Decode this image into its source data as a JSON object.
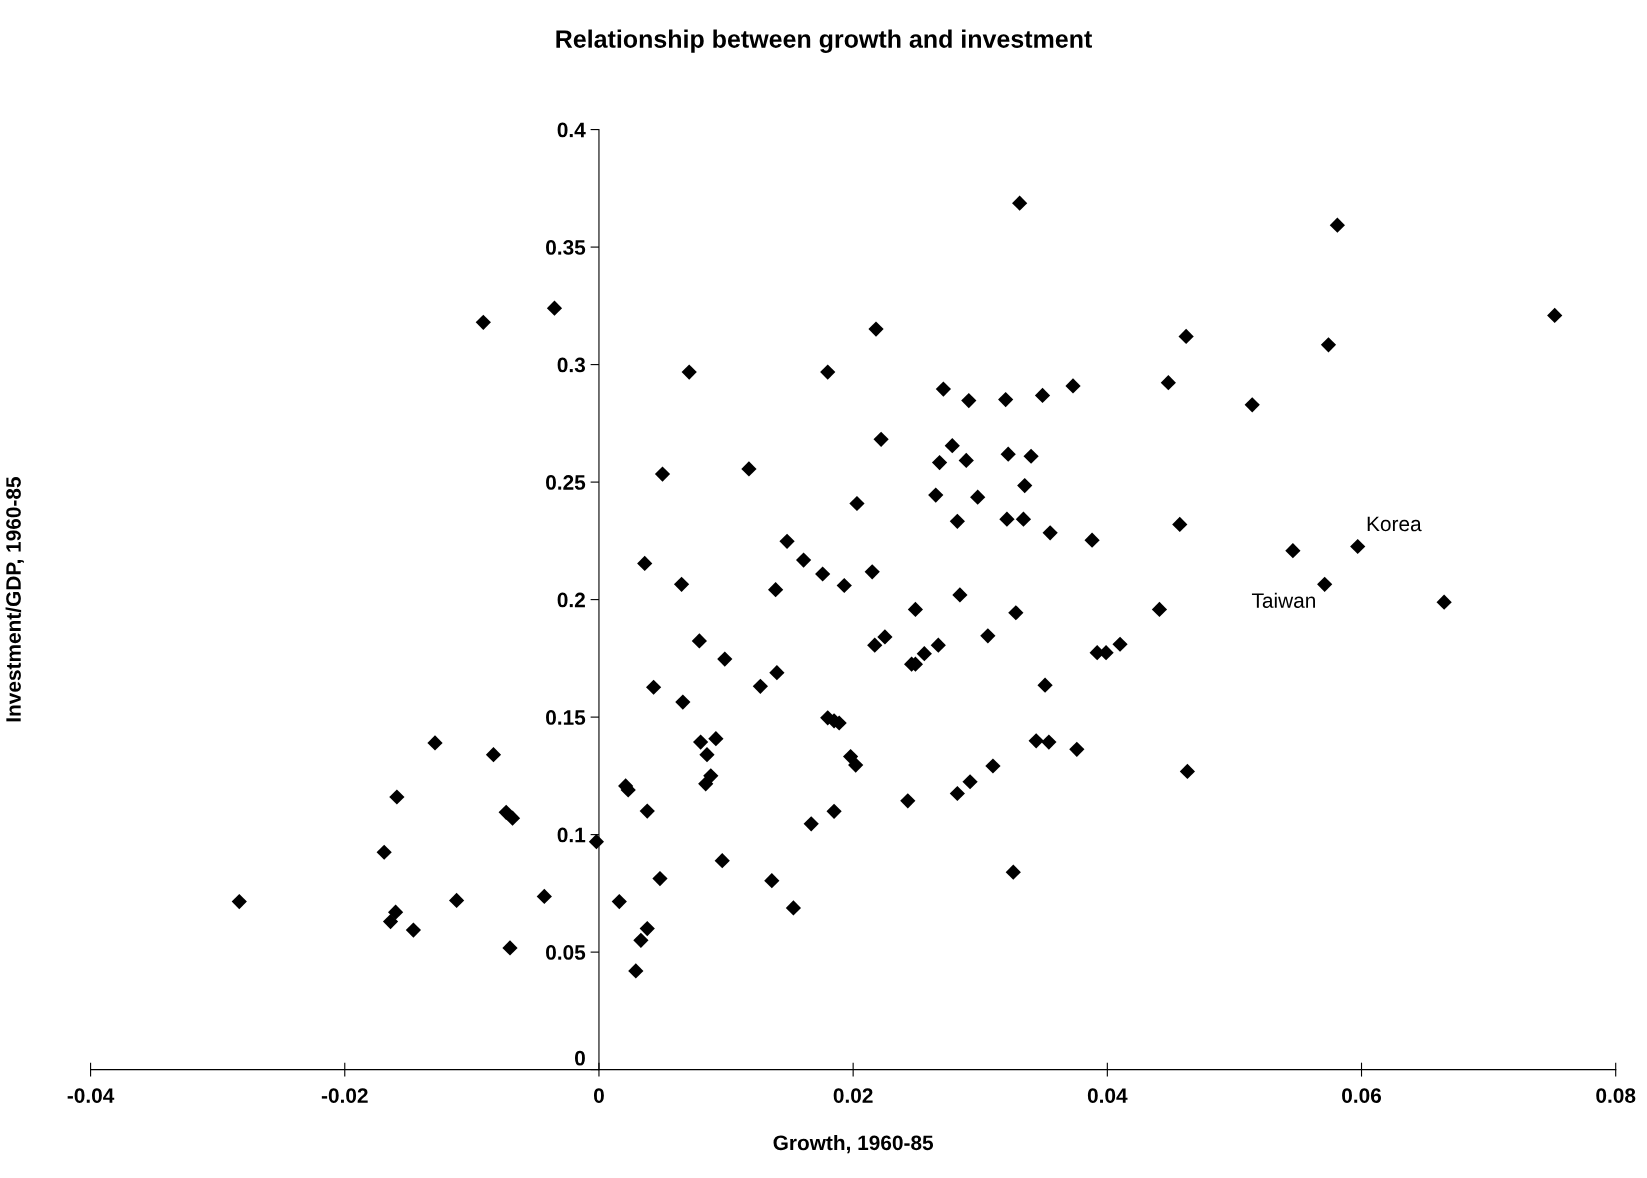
{
  "chart_data": {
    "type": "scatter",
    "title": "Relationship between growth and investment",
    "xlabel": "Growth, 1960-85",
    "ylabel": "Investment/GDP, 1960-85",
    "xlim": [
      -0.04,
      0.08
    ],
    "xticks": [
      -0.04,
      -0.02,
      0,
      0.02,
      0.04,
      0.06,
      0.08
    ],
    "ylim": [
      0,
      0.4
    ],
    "yticks": [
      0,
      0.05,
      0.1,
      0.15,
      0.2,
      0.25,
      0.3,
      0.35,
      0.4
    ],
    "marker": "diamond",
    "grid": false,
    "legend": false,
    "series": [
      {
        "color": "#000000",
        "x": [
          -0.0283,
          -0.0091,
          -0.0035,
          -0.0129,
          -0.0083,
          -0.0159,
          -0.0169,
          -0.0164,
          -0.016,
          -0.0146,
          -0.0112,
          -0.007,
          -0.0073,
          -0.0068,
          -0.0043,
          -0.0002,
          0.0016,
          0.0021,
          0.0023,
          0.0029,
          0.0033,
          0.0038,
          0.0038,
          0.0036,
          0.0043,
          0.0048,
          0.005,
          0.0065,
          0.0066,
          0.0071,
          0.0079,
          0.008,
          0.0084,
          0.0085,
          0.0088,
          0.0092,
          0.0097,
          0.0099,
          0.0118,
          0.0127,
          0.0136,
          0.014,
          0.0139,
          0.0148,
          0.0153,
          0.0161,
          0.0167,
          0.0176,
          0.018,
          0.018,
          0.0185,
          0.0189,
          0.0185,
          0.0193,
          0.0198,
          0.0202,
          0.0203,
          0.0215,
          0.0218,
          0.0217,
          0.0222,
          0.0225,
          0.0243,
          0.0246,
          0.0249,
          0.0249,
          0.0256,
          0.0265,
          0.0267,
          0.0268,
          0.0271,
          0.0278,
          0.0282,
          0.0282,
          0.0284,
          0.0289,
          0.0291,
          0.0292,
          0.0298,
          0.0306,
          0.031,
          0.032,
          0.0322,
          0.0321,
          0.0326,
          0.0328,
          0.0331,
          0.0334,
          0.0335,
          0.034,
          0.0344,
          0.0349,
          0.0351,
          0.0354,
          0.0355,
          0.0373,
          0.0376,
          0.0388,
          0.0392,
          0.0399,
          0.041,
          0.0441,
          0.0448,
          0.0457,
          0.0462,
          0.0463,
          0.0514,
          0.0546,
          0.0571,
          0.0574,
          0.0581,
          0.0597,
          0.0665,
          0.0752
        ],
        "values": [
          0.0715,
          0.318,
          0.324,
          0.139,
          0.134,
          0.116,
          0.0925,
          0.063,
          0.067,
          0.0594,
          0.072,
          0.0518,
          0.1095,
          0.107,
          0.0737,
          0.097,
          0.0715,
          0.1207,
          0.119,
          0.042,
          0.055,
          0.06,
          0.11,
          0.2154,
          0.1627,
          0.0813,
          0.2534,
          0.2065,
          0.1564,
          0.2968,
          0.1824,
          0.1394,
          0.1216,
          0.134,
          0.125,
          0.1408,
          0.0889,
          0.1747,
          0.2556,
          0.1631,
          0.0804,
          0.1689,
          0.2042,
          0.2248,
          0.0688,
          0.2168,
          0.1046,
          0.2109,
          0.2968,
          0.1497,
          0.1484,
          0.1475,
          0.1099,
          0.206,
          0.1332,
          0.1296,
          0.2409,
          0.2118,
          0.3151,
          0.1806,
          0.2682,
          0.1841,
          0.1144,
          0.1725,
          0.1725,
          0.1958,
          0.177,
          0.2445,
          0.1806,
          0.2583,
          0.2896,
          0.2655,
          0.2333,
          0.1175,
          0.202,
          0.2592,
          0.2847,
          0.1225,
          0.2436,
          0.1846,
          0.1292,
          0.2851,
          0.2619,
          0.2342,
          0.084,
          0.1944,
          0.3687,
          0.2342,
          0.2485,
          0.261,
          0.1399,
          0.2869,
          0.1636,
          0.1394,
          0.2284,
          0.2909,
          0.1363,
          0.2253,
          0.1774,
          0.1774,
          0.181,
          0.1958,
          0.2923,
          0.232,
          0.312,
          0.1269,
          0.2829,
          0.2208,
          0.2065,
          0.3084,
          0.3593,
          0.2226,
          0.1989,
          0.3209
        ]
      }
    ],
    "annotations": [
      {
        "text": "Korea",
        "x": 0.0597,
        "y": 0.2226
      },
      {
        "text": "Taiwan",
        "x": 0.0571,
        "y": 0.2065
      }
    ]
  }
}
